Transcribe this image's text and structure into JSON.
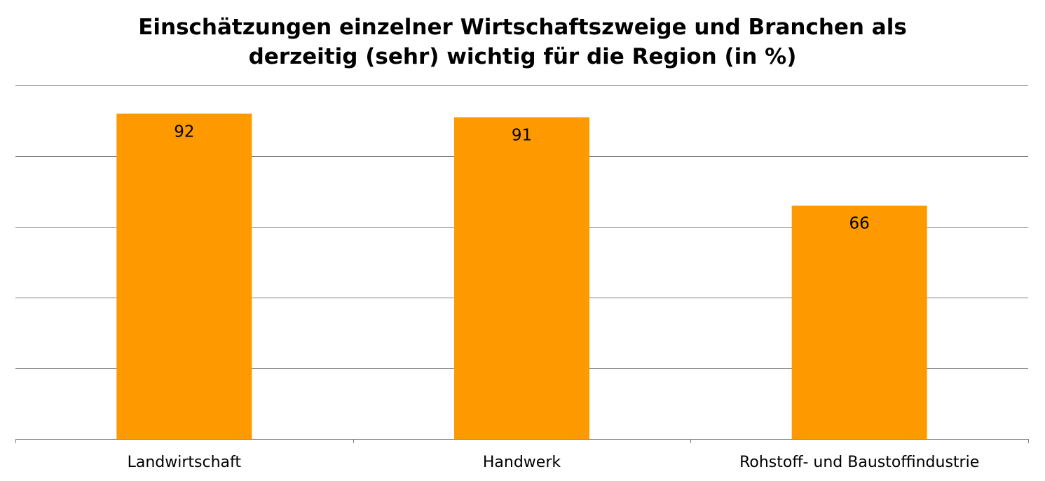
{
  "title_lines": [
    "Einschätzungen einzelner Wirtschaftszweige und Branchen als",
    "derzeitig (sehr) wichtig für die Region (in %)"
  ],
  "chart_data": {
    "type": "bar",
    "title": "Einschätzungen einzelner Wirtschaftszweige und Branchen als derzeitig (sehr) wichtig für die Region (in %)",
    "categories": [
      "Landwirtschaft",
      "Handwerk",
      "Rohstoff- und Baustoffindustrie"
    ],
    "values": [
      92,
      91,
      66
    ],
    "ylim": [
      0,
      100
    ],
    "grid": true,
    "y_tick_labels_shown": false,
    "data_labels": [
      "92",
      "91",
      "66"
    ],
    "colors": {
      "bar": "#FF9900",
      "grid": "#7f7f7f",
      "axis": "#7f7f7f"
    }
  }
}
